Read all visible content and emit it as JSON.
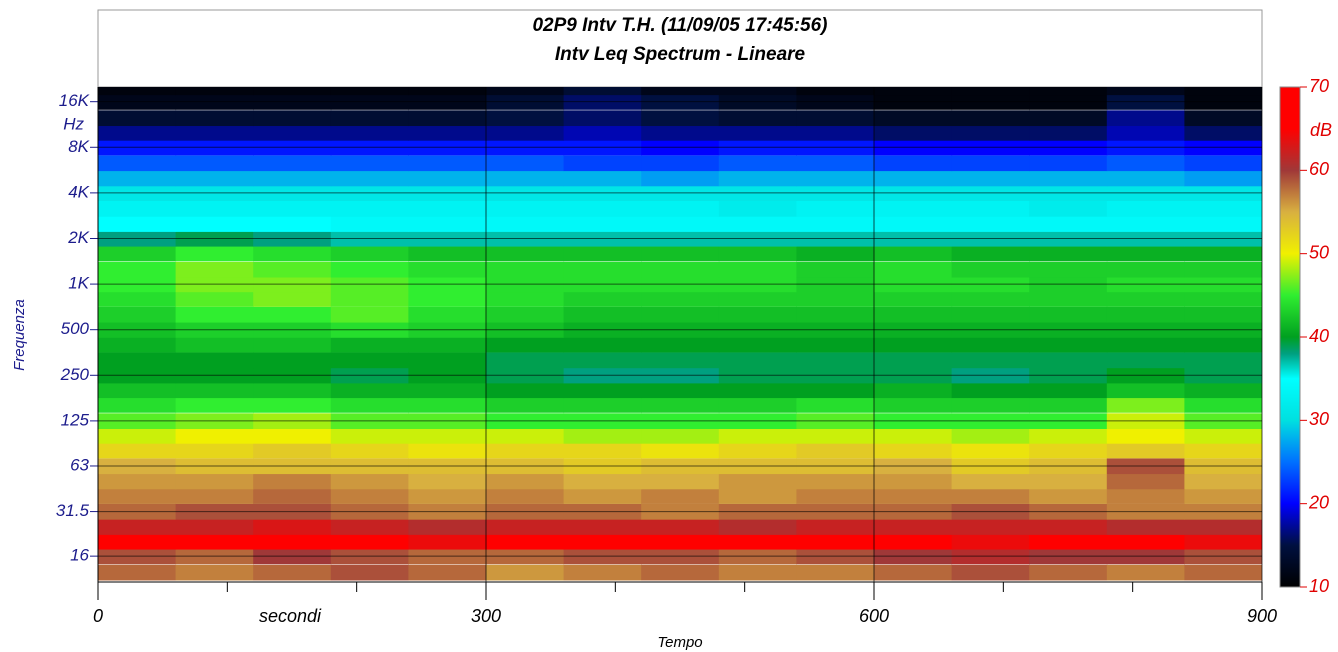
{
  "chart_data": {
    "type": "heatmap",
    "title": "02P9 Intv T.H. (11/09/05 17:45:56)",
    "subtitle": "Intv Leq Spectrum - Lineare",
    "x_label": "Tempo",
    "x_unit": "secondi",
    "y_label": "Frequenza",
    "y_unit": "Hz",
    "x": [
      0,
      60,
      120,
      180,
      240,
      300,
      360,
      420,
      480,
      540,
      600,
      660,
      720,
      780,
      840
    ],
    "xlim": [
      0,
      900
    ],
    "xticks": [
      0,
      300,
      600,
      900
    ],
    "xminor": [
      100,
      200,
      400,
      500,
      700,
      800
    ],
    "y": [
      12.5,
      16,
      20,
      25,
      31.5,
      40,
      50,
      63,
      80,
      100,
      125,
      160,
      200,
      250,
      315,
      400,
      500,
      630,
      800,
      1000,
      1250,
      1600,
      2000,
      2500,
      3150,
      4000,
      5000,
      6300,
      8000,
      10000,
      12500,
      16000,
      20000
    ],
    "ylim": [
      10.8,
      20000
    ],
    "log_y": true,
    "yticks": [
      16,
      31.5,
      63,
      125,
      250,
      500,
      {
        "value": 1000,
        "label": "1K"
      },
      {
        "value": 2000,
        "label": "2K"
      },
      {
        "value": 4000,
        "label": "4K"
      },
      {
        "value": 8000,
        "label": "8K"
      },
      {
        "value": 16000,
        "label": "16K"
      }
    ],
    "grid": true,
    "z": [
      [
        58,
        57,
        58,
        59,
        58,
        56,
        57,
        58,
        57,
        57,
        58,
        59,
        58,
        57,
        58
      ],
      [
        59,
        58,
        60,
        59,
        58,
        58,
        59,
        59,
        58,
        59,
        60,
        61,
        60,
        60,
        59
      ],
      [
        65,
        66,
        66,
        65,
        64,
        65,
        65,
        66,
        65,
        65,
        65,
        64,
        65,
        65,
        64
      ],
      [
        62,
        62,
        63,
        62,
        61,
        62,
        62,
        62,
        61,
        62,
        62,
        62,
        62,
        61,
        61
      ],
      [
        58,
        59,
        59,
        58,
        57,
        58,
        58,
        57,
        58,
        58,
        58,
        59,
        58,
        57,
        57
      ],
      [
        57,
        57,
        58,
        57,
        56,
        57,
        56,
        57,
        56,
        57,
        57,
        57,
        56,
        57,
        56
      ],
      [
        56,
        56,
        57,
        56,
        55,
        56,
        55,
        55,
        56,
        56,
        56,
        55,
        55,
        58,
        55
      ],
      [
        55,
        54,
        54,
        54,
        54,
        54,
        53,
        54,
        54,
        54,
        55,
        53,
        54,
        59,
        54
      ],
      [
        52,
        52,
        53,
        52,
        51,
        52,
        52,
        51,
        52,
        53,
        52,
        51,
        52,
        53,
        52
      ],
      [
        49,
        50,
        50,
        49,
        49,
        49,
        48,
        48,
        49,
        49,
        49,
        48,
        49,
        50,
        49
      ],
      [
        46,
        47,
        48,
        46,
        46,
        45,
        45,
        45,
        45,
        46,
        45,
        45,
        45,
        49,
        46
      ],
      [
        44,
        45,
        45,
        44,
        44,
        43,
        43,
        43,
        43,
        44,
        43,
        43,
        43,
        47,
        44
      ],
      [
        42,
        42,
        42,
        41,
        41,
        40,
        40,
        40,
        40,
        40,
        41,
        40,
        40,
        42,
        41
      ],
      [
        40,
        40,
        40,
        39,
        40,
        39,
        38,
        38,
        39,
        39,
        39,
        38,
        39,
        40,
        39
      ],
      [
        40,
        40,
        40,
        40,
        40,
        39,
        39,
        39,
        39,
        39,
        39,
        39,
        39,
        39,
        39
      ],
      [
        41,
        42,
        42,
        41,
        41,
        40,
        40,
        40,
        40,
        40,
        40,
        40,
        40,
        40,
        40
      ],
      [
        42,
        43,
        43,
        44,
        43,
        42,
        41,
        41,
        41,
        41,
        41,
        41,
        41,
        41,
        41
      ],
      [
        43,
        45,
        45,
        46,
        44,
        43,
        42,
        42,
        42,
        42,
        42,
        42,
        42,
        42,
        42
      ],
      [
        44,
        46,
        47,
        46,
        45,
        44,
        43,
        43,
        43,
        43,
        43,
        43,
        43,
        43,
        43
      ],
      [
        45,
        47,
        47,
        46,
        45,
        44,
        44,
        44,
        44,
        43,
        44,
        44,
        43,
        44,
        44
      ],
      [
        45,
        47,
        46,
        45,
        44,
        44,
        44,
        44,
        44,
        43,
        44,
        43,
        43,
        43,
        43
      ],
      [
        43,
        45,
        44,
        43,
        42,
        42,
        42,
        42,
        42,
        41,
        42,
        41,
        41,
        41,
        41
      ],
      [
        38,
        39,
        38,
        37,
        37,
        37,
        37,
        37,
        37,
        37,
        37,
        37,
        37,
        37,
        37
      ],
      [
        35,
        35,
        35,
        34,
        34,
        34,
        34,
        34,
        34,
        34,
        34,
        34,
        34,
        34,
        34
      ],
      [
        33,
        33,
        33,
        33,
        33,
        33,
        33,
        33,
        32,
        33,
        33,
        33,
        32,
        33,
        33
      ],
      [
        31,
        31,
        31,
        31,
        31,
        31,
        31,
        31,
        31,
        31,
        31,
        31,
        31,
        31,
        31
      ],
      [
        28,
        28,
        28,
        28,
        28,
        28,
        28,
        27,
        28,
        28,
        28,
        28,
        28,
        28,
        27
      ],
      [
        24,
        24,
        24,
        24,
        24,
        24,
        23,
        23,
        24,
        24,
        23,
        23,
        23,
        24,
        23
      ],
      [
        21,
        21,
        21,
        21,
        21,
        21,
        21,
        20,
        21,
        21,
        20,
        20,
        20,
        21,
        20
      ],
      [
        17,
        17,
        17,
        17,
        17,
        17,
        18,
        17,
        17,
        17,
        16,
        16,
        16,
        18,
        16
      ],
      [
        14,
        14,
        14,
        14,
        14,
        15,
        16,
        15,
        14,
        14,
        13,
        13,
        13,
        17,
        13
      ],
      [
        12,
        12,
        12,
        12,
        12,
        14,
        16,
        15,
        13,
        12,
        11,
        11,
        11,
        15,
        11
      ],
      [
        11,
        11,
        11,
        11,
        11,
        12,
        14,
        12,
        12,
        11,
        11,
        11,
        11,
        12,
        11
      ]
    ],
    "colorscale": [
      [
        10,
        "#000000"
      ],
      [
        15,
        "#001040"
      ],
      [
        20,
        "#0000ff"
      ],
      [
        25,
        "#0070ff"
      ],
      [
        30,
        "#00e0e0"
      ],
      [
        35,
        "#00ffff"
      ],
      [
        38,
        "#00a080"
      ],
      [
        40,
        "#00a020"
      ],
      [
        45,
        "#30ee30"
      ],
      [
        50,
        "#f0f000"
      ],
      [
        55,
        "#d8b040"
      ],
      [
        60,
        "#a03838"
      ],
      [
        65,
        "#ff0000"
      ],
      [
        70,
        "#ff0000"
      ]
    ],
    "colorbar": {
      "label": "dB",
      "lim": [
        10,
        70
      ],
      "ticks": [
        10,
        20,
        30,
        40,
        50,
        60,
        70
      ]
    }
  }
}
